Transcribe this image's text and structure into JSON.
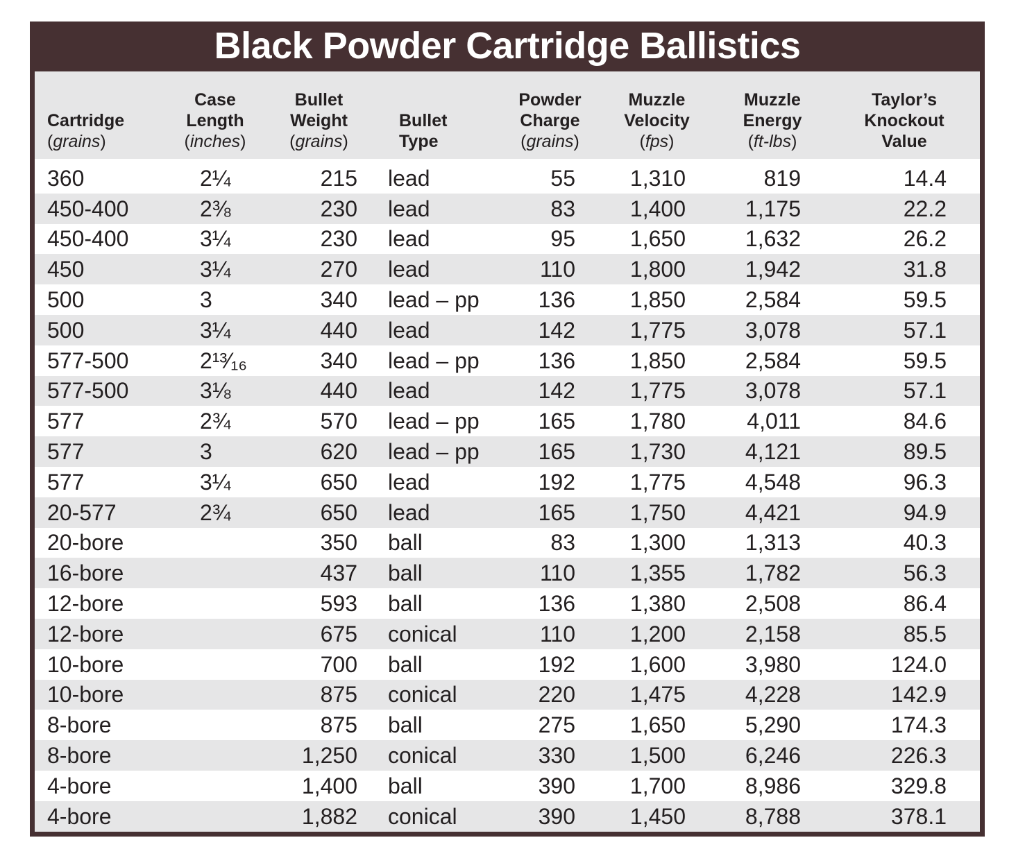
{
  "chart_data": {
    "type": "table",
    "title": "Black Powder Cartridge Ballistics",
    "columns": [
      {
        "lines": [
          "",
          "Cartridge"
        ],
        "unit": "grains"
      },
      {
        "lines": [
          "Case",
          "Length"
        ],
        "unit": "inches"
      },
      {
        "lines": [
          "Bullet",
          "Weight"
        ],
        "unit": "grains"
      },
      {
        "lines": [
          "Bullet",
          "Type"
        ],
        "unit": ""
      },
      {
        "lines": [
          "Powder",
          "Charge"
        ],
        "unit": "grains"
      },
      {
        "lines": [
          "Muzzle",
          "Velocity"
        ],
        "unit": "fps"
      },
      {
        "lines": [
          "Muzzle",
          "Energy"
        ],
        "unit": "ft-lbs"
      },
      {
        "lines": [
          "Taylor’s",
          "Knockout",
          "Value"
        ],
        "unit": ""
      }
    ],
    "rows": [
      [
        "360",
        "2¼",
        "215",
        "lead",
        "55",
        "1,310",
        "819",
        "14.4"
      ],
      [
        "450-400",
        "2⅜",
        "230",
        "lead",
        "83",
        "1,400",
        "1,175",
        "22.2"
      ],
      [
        "450-400",
        "3¼",
        "230",
        "lead",
        "95",
        "1,650",
        "1,632",
        "26.2"
      ],
      [
        "450",
        "3¼",
        "270",
        "lead",
        "110",
        "1,800",
        "1,942",
        "31.8"
      ],
      [
        "500",
        "3",
        "340",
        "lead – pp",
        "136",
        "1,850",
        "2,584",
        "59.5"
      ],
      [
        "500",
        "3¼",
        "440",
        "lead",
        "142",
        "1,775",
        "3,078",
        "57.1"
      ],
      [
        "577-500",
        "2¹³⁄₁₆",
        "340",
        "lead – pp",
        "136",
        "1,850",
        "2,584",
        "59.5"
      ],
      [
        "577-500",
        "3⅛",
        "440",
        "lead",
        "142",
        "1,775",
        "3,078",
        "57.1"
      ],
      [
        "577",
        "2¾",
        "570",
        "lead – pp",
        "165",
        "1,780",
        "4,011",
        "84.6"
      ],
      [
        "577",
        "3",
        "620",
        "lead – pp",
        "165",
        "1,730",
        "4,121",
        "89.5"
      ],
      [
        "577",
        "3¼",
        "650",
        "lead",
        "192",
        "1,775",
        "4,548",
        "96.3"
      ],
      [
        "20-577",
        "2¾",
        "650",
        "lead",
        "165",
        "1,750",
        "4,421",
        "94.9"
      ],
      [
        "20-bore",
        "",
        "350",
        "ball",
        "83",
        "1,300",
        "1,313",
        "40.3"
      ],
      [
        "16-bore",
        "",
        "437",
        "ball",
        "110",
        "1,355",
        "1,782",
        "56.3"
      ],
      [
        "12-bore",
        "",
        "593",
        "ball",
        "136",
        "1,380",
        "2,508",
        "86.4"
      ],
      [
        "12-bore",
        "",
        "675",
        "conical",
        "110",
        "1,200",
        "2,158",
        "85.5"
      ],
      [
        "10-bore",
        "",
        "700",
        "ball",
        "192",
        "1,600",
        "3,980",
        "124.0"
      ],
      [
        "10-bore",
        "",
        "875",
        "conical",
        "220",
        "1,475",
        "4,228",
        "142.9"
      ],
      [
        "8-bore",
        "",
        "875",
        "ball",
        "275",
        "1,650",
        "5,290",
        "174.3"
      ],
      [
        "8-bore",
        "",
        "1,250",
        "conical",
        "330",
        "1,500",
        "6,246",
        "226.3"
      ],
      [
        "4-bore",
        "",
        "1,400",
        "ball",
        "390",
        "1,700",
        "8,986",
        "329.8"
      ],
      [
        "4-bore",
        "",
        "1,882",
        "conical",
        "390",
        "1,450",
        "8,788",
        "378.1"
      ]
    ]
  },
  "colors": {
    "frame": "#463032",
    "title_text": "#ffffff",
    "header_bg": "#e6e6e7",
    "alt_row_bg": "#e6e6e7",
    "text": "#231f20"
  }
}
